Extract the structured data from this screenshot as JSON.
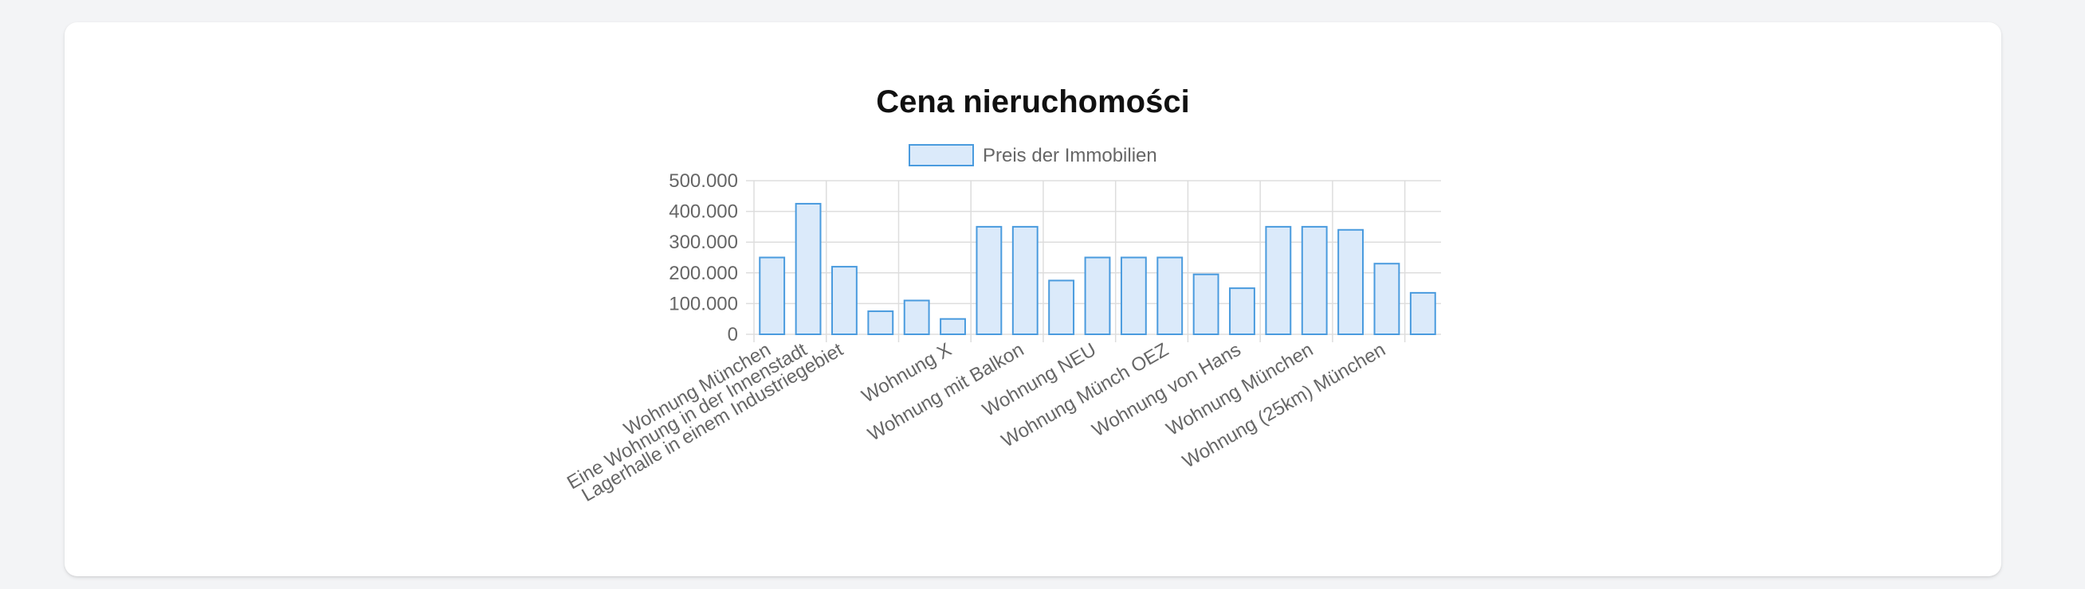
{
  "page": {
    "title": "Cena nieruchomości"
  },
  "colors": {
    "bar_fill": "#dbeafa",
    "bar_stroke": "#4a9bde",
    "grid": "#dddddd",
    "text": "#666666"
  },
  "chart_data": {
    "type": "bar",
    "title": "",
    "xlabel": "",
    "ylabel": "",
    "legend_position": "top",
    "grid": true,
    "ylim": [
      0,
      500000
    ],
    "y_ticks": [
      0,
      100000,
      200000,
      300000,
      400000,
      500000
    ],
    "y_tick_labels": [
      "0",
      "100.000",
      "200.000",
      "300.000",
      "400.000",
      "500.000"
    ],
    "categories": [
      "Wohnung München",
      "Eine Wohnung in der Innenstadt",
      "Lagerhalle in einem Industriegebiet",
      "",
      "",
      "Wohnung X",
      "",
      "Wohnung mit Balkon",
      "",
      "Wohnung NEU",
      "",
      "Wohnung Münch OEZ",
      "",
      "Wohnung von Hans",
      "",
      "Wohnung München",
      "",
      "Wohnung (25km) München",
      ""
    ],
    "series": [
      {
        "name": "Preis der Immobilien",
        "values": [
          250000,
          425000,
          220000,
          75000,
          110000,
          50000,
          350000,
          350000,
          175000,
          250000,
          250000,
          250000,
          195000,
          150000,
          350000,
          350000,
          340000,
          230000,
          135000
        ]
      }
    ]
  }
}
